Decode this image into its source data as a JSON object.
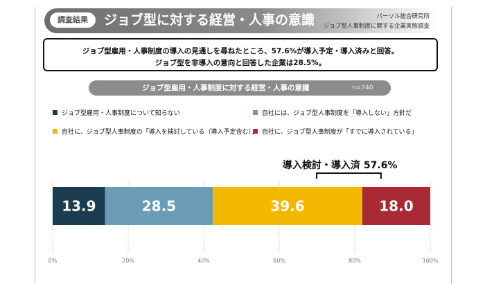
{
  "header": {
    "tag": "調査結果",
    "title": "ジョブ型に対する経営・人事の意識",
    "source_line1": "パーソル総合研究所",
    "source_line2": "ジョブ型人事制度に関する企業実態調査"
  },
  "summary": {
    "line1": "ジョブ型雇用・人事制度の導入の見通しを尋ねたところ、57.6%が導入予定・導入済みと回答。",
    "line2": "ジョブ型を非導入の意向と回答した企業は28.5%。"
  },
  "subhead": {
    "title": "ジョブ型雇用・人事制度に対する経営・人事の意識",
    "n": "n=740"
  },
  "legend": [
    {
      "label": "ジョブ型雇用・人事制度について知らない",
      "color": "#1c3d4f"
    },
    {
      "label": "自社には、ジョブ型人事制度を「導入しない」方針だ",
      "color": "#6a9cb6"
    },
    {
      "label": "自社に、ジョブ型人事制度の「導入を検討している（導入予定含む）」",
      "color": "#f5b800"
    },
    {
      "label": "自社に、ジョブ型人事制度が「すでに導入されている」",
      "color": "#a92a34"
    }
  ],
  "bracket_label": "導入検討・導入済 57.6%",
  "chart_data": {
    "type": "bar",
    "orientation": "horizontal",
    "stacked": true,
    "series": [
      {
        "name": "ジョブ型雇用・人事制度について知らない",
        "values": [
          13.9
        ],
        "color": "#1c3d4f"
      },
      {
        "name": "自社には、ジョブ型人事制度を「導入しない」方針だ",
        "values": [
          28.5
        ],
        "color": "#6a9cb6"
      },
      {
        "name": "自社に、ジョブ型人事制度の「導入を検討している（導入予定含む）」",
        "values": [
          39.6
        ],
        "color": "#f5b800"
      },
      {
        "name": "自社に、ジョブ型人事制度が「すでに導入されている」",
        "values": [
          18.0
        ],
        "color": "#a92a34"
      }
    ],
    "xlim": [
      0,
      100
    ],
    "ticks": [
      "0%",
      "20%",
      "40%",
      "60%",
      "80%",
      "100%"
    ],
    "gridlines": true,
    "legend_position": "top",
    "annotation": {
      "text": "導入検討・導入済 57.6%",
      "spans_series": [
        2,
        3
      ]
    }
  }
}
